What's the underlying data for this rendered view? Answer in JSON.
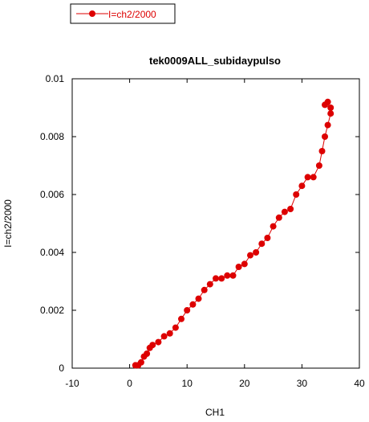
{
  "chart_data": {
    "type": "scatter",
    "title": "tek0009ALL_subidaypulso",
    "xlabel": "CH1",
    "ylabel": "I=ch2/2000",
    "xlim": [
      -10,
      40
    ],
    "ylim": [
      0,
      0.01
    ],
    "xticks": [
      -10,
      0,
      10,
      20,
      30,
      40
    ],
    "yticks": [
      0,
      0.002,
      0.004,
      0.006,
      0.008,
      0.01
    ],
    "xtick_labels": [
      "-10",
      "0",
      "10",
      "20",
      "30",
      "40"
    ],
    "ytick_labels": [
      "0",
      "0.002",
      "0.004",
      "0.006",
      "0.008",
      "0.01"
    ],
    "grid": false,
    "legend": {
      "position": "top-left",
      "entries": [
        "I=ch2/2000"
      ]
    },
    "series": [
      {
        "name": "I=ch2/2000",
        "color": "#dd0000",
        "marker": "circle",
        "line": true,
        "points": [
          [
            1.0,
            0.0001
          ],
          [
            1.5,
            0.0001
          ],
          [
            2.0,
            0.0002
          ],
          [
            2.5,
            0.0004
          ],
          [
            3.0,
            0.0005
          ],
          [
            3.5,
            0.0007
          ],
          [
            4.0,
            0.0008
          ],
          [
            5.0,
            0.0009
          ],
          [
            6.0,
            0.0011
          ],
          [
            7.0,
            0.0012
          ],
          [
            8.0,
            0.0014
          ],
          [
            9.0,
            0.0017
          ],
          [
            10.0,
            0.002
          ],
          [
            11.0,
            0.0022
          ],
          [
            12.0,
            0.0024
          ],
          [
            13.0,
            0.0027
          ],
          [
            14.0,
            0.0029
          ],
          [
            15.0,
            0.0031
          ],
          [
            16.0,
            0.0031
          ],
          [
            17.0,
            0.0032
          ],
          [
            18.0,
            0.0032
          ],
          [
            19.0,
            0.0035
          ],
          [
            20.0,
            0.0036
          ],
          [
            21.0,
            0.0039
          ],
          [
            22.0,
            0.004
          ],
          [
            23.0,
            0.0043
          ],
          [
            24.0,
            0.0045
          ],
          [
            25.0,
            0.0049
          ],
          [
            26.0,
            0.0052
          ],
          [
            27.0,
            0.0054
          ],
          [
            28.0,
            0.0055
          ],
          [
            29.0,
            0.006
          ],
          [
            30.0,
            0.0063
          ],
          [
            31.0,
            0.0066
          ],
          [
            32.0,
            0.0066
          ],
          [
            33.0,
            0.007
          ],
          [
            33.5,
            0.0075
          ],
          [
            34.0,
            0.008
          ],
          [
            34.5,
            0.0084
          ],
          [
            35.0,
            0.0088
          ],
          [
            34.5,
            0.0092
          ],
          [
            34.0,
            0.0091
          ],
          [
            35.0,
            0.009
          ]
        ]
      }
    ]
  }
}
